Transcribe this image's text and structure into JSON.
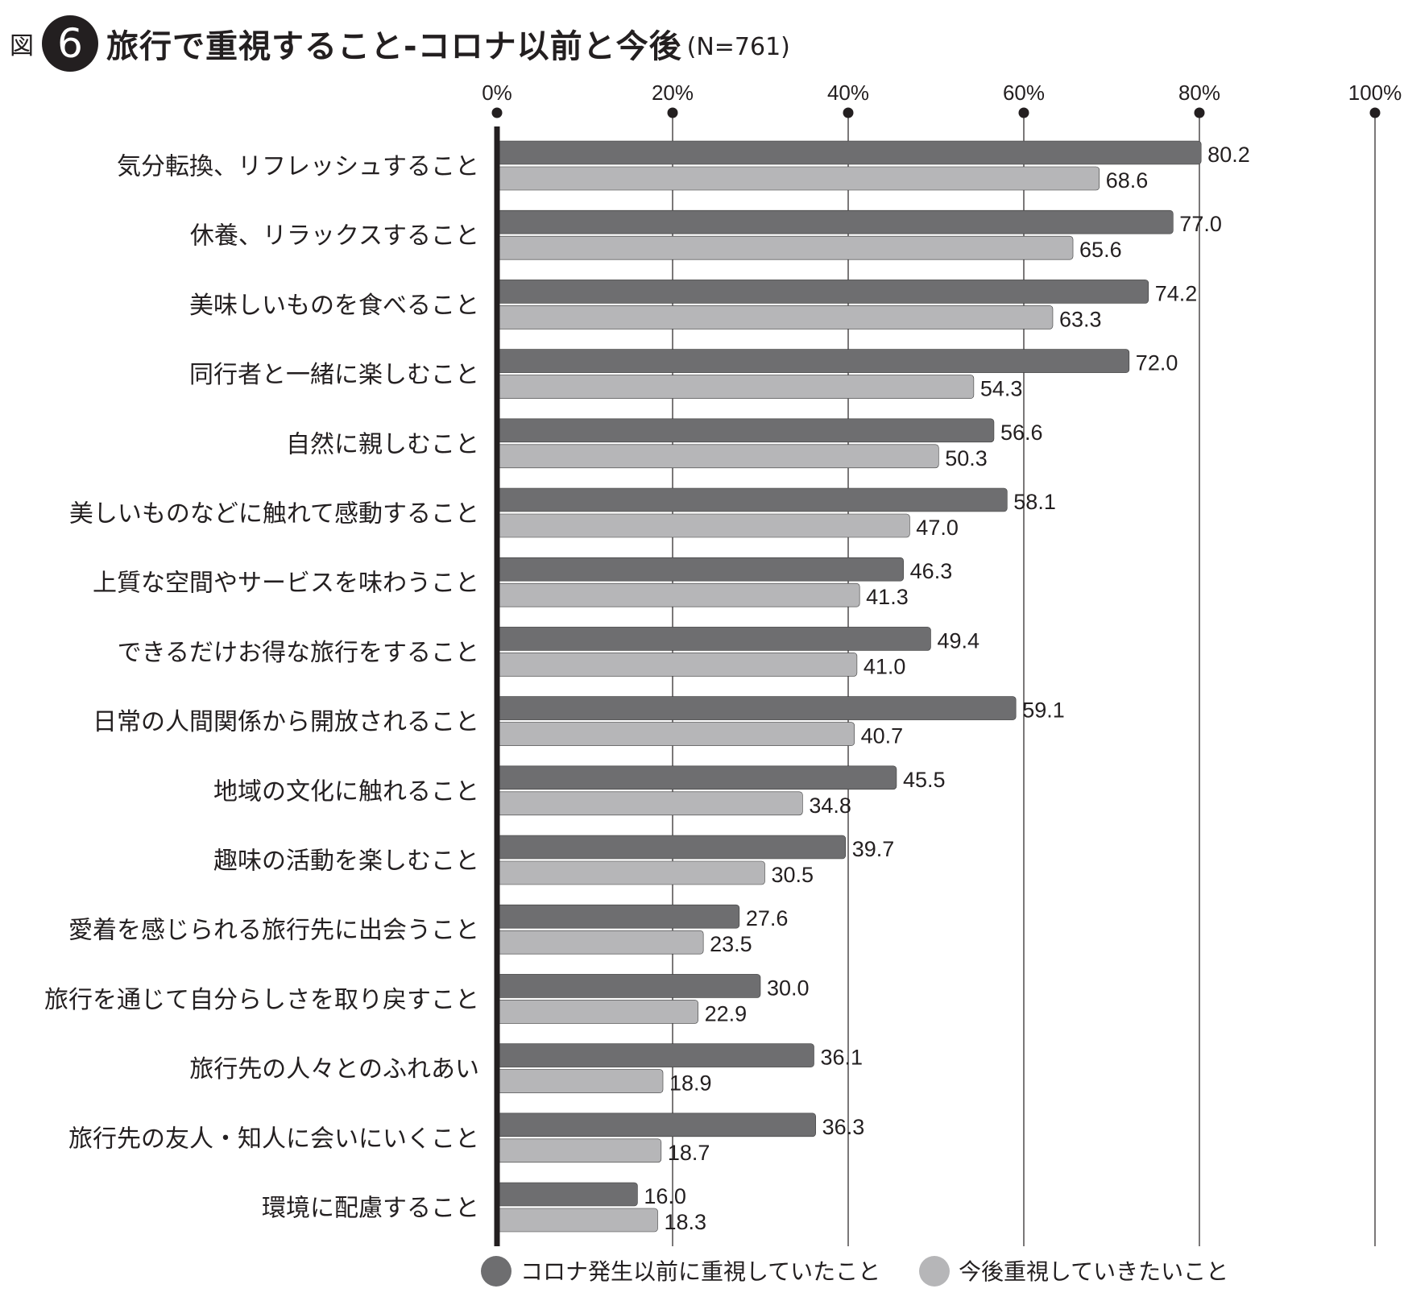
{
  "header": {
    "fig_label": "図",
    "fig_number": "6",
    "title": "旅行で重視すること-コロナ以前と今後",
    "subtitle": "(N=761)"
  },
  "chart_data": {
    "type": "bar",
    "orientation": "horizontal",
    "categories": [
      "気分転換、リフレッシュすること",
      "休養、リラックスすること",
      "美味しいものを食べること",
      "同行者と一緒に楽しむこと",
      "自然に親しむこと",
      "美しいものなどに触れて感動すること",
      "上質な空間やサービスを味わうこと",
      "できるだけお得な旅行をすること",
      "日常の人間関係から開放されること",
      "地域の文化に触れること",
      "趣味の活動を楽しむこと",
      "愛着を感じられる旅行先に出会うこと",
      "旅行を通じて自分らしさを取り戻すこと",
      "旅行先の人々とのふれあい",
      "旅行先の友人・知人に会いにいくこと",
      "環境に配慮すること"
    ],
    "series": [
      {
        "name": "コロナ発生以前に重視していたこと",
        "color": "#6e6e70",
        "values": [
          80.2,
          77.0,
          74.2,
          72.0,
          56.6,
          58.1,
          46.3,
          49.4,
          59.1,
          45.5,
          39.7,
          27.6,
          30.0,
          36.1,
          36.3,
          16.0
        ],
        "labels": [
          "80.2",
          "77.0",
          "74.2",
          "72.0",
          "56.6",
          "58.1",
          "46.3",
          "49.4",
          "59.1",
          "45.5",
          "39.7",
          "27.6",
          "30.0",
          "36.1",
          "36.3",
          "16.0"
        ]
      },
      {
        "name": "今後重視していきたいこと",
        "color": "#b6b6b8",
        "values": [
          68.6,
          65.6,
          63.3,
          54.3,
          50.3,
          47.0,
          41.3,
          41.0,
          40.7,
          34.8,
          30.5,
          23.5,
          22.9,
          18.9,
          18.7,
          18.3
        ],
        "labels": [
          "68.6",
          "65.6",
          "63.3",
          "54.3",
          "50.3",
          "47.0",
          "41.3",
          "41.0",
          "40.7",
          "34.8",
          "30.5",
          "23.5",
          "22.9",
          "18.9",
          "18.7",
          "18.3"
        ]
      }
    ],
    "xlim": [
      0,
      100
    ],
    "xticks": [
      0,
      20,
      40,
      60,
      80,
      100
    ],
    "xtick_labels": [
      "0%",
      "20%",
      "40%",
      "60%",
      "80%",
      "100%"
    ],
    "grid": true,
    "legend_position": "bottom"
  }
}
